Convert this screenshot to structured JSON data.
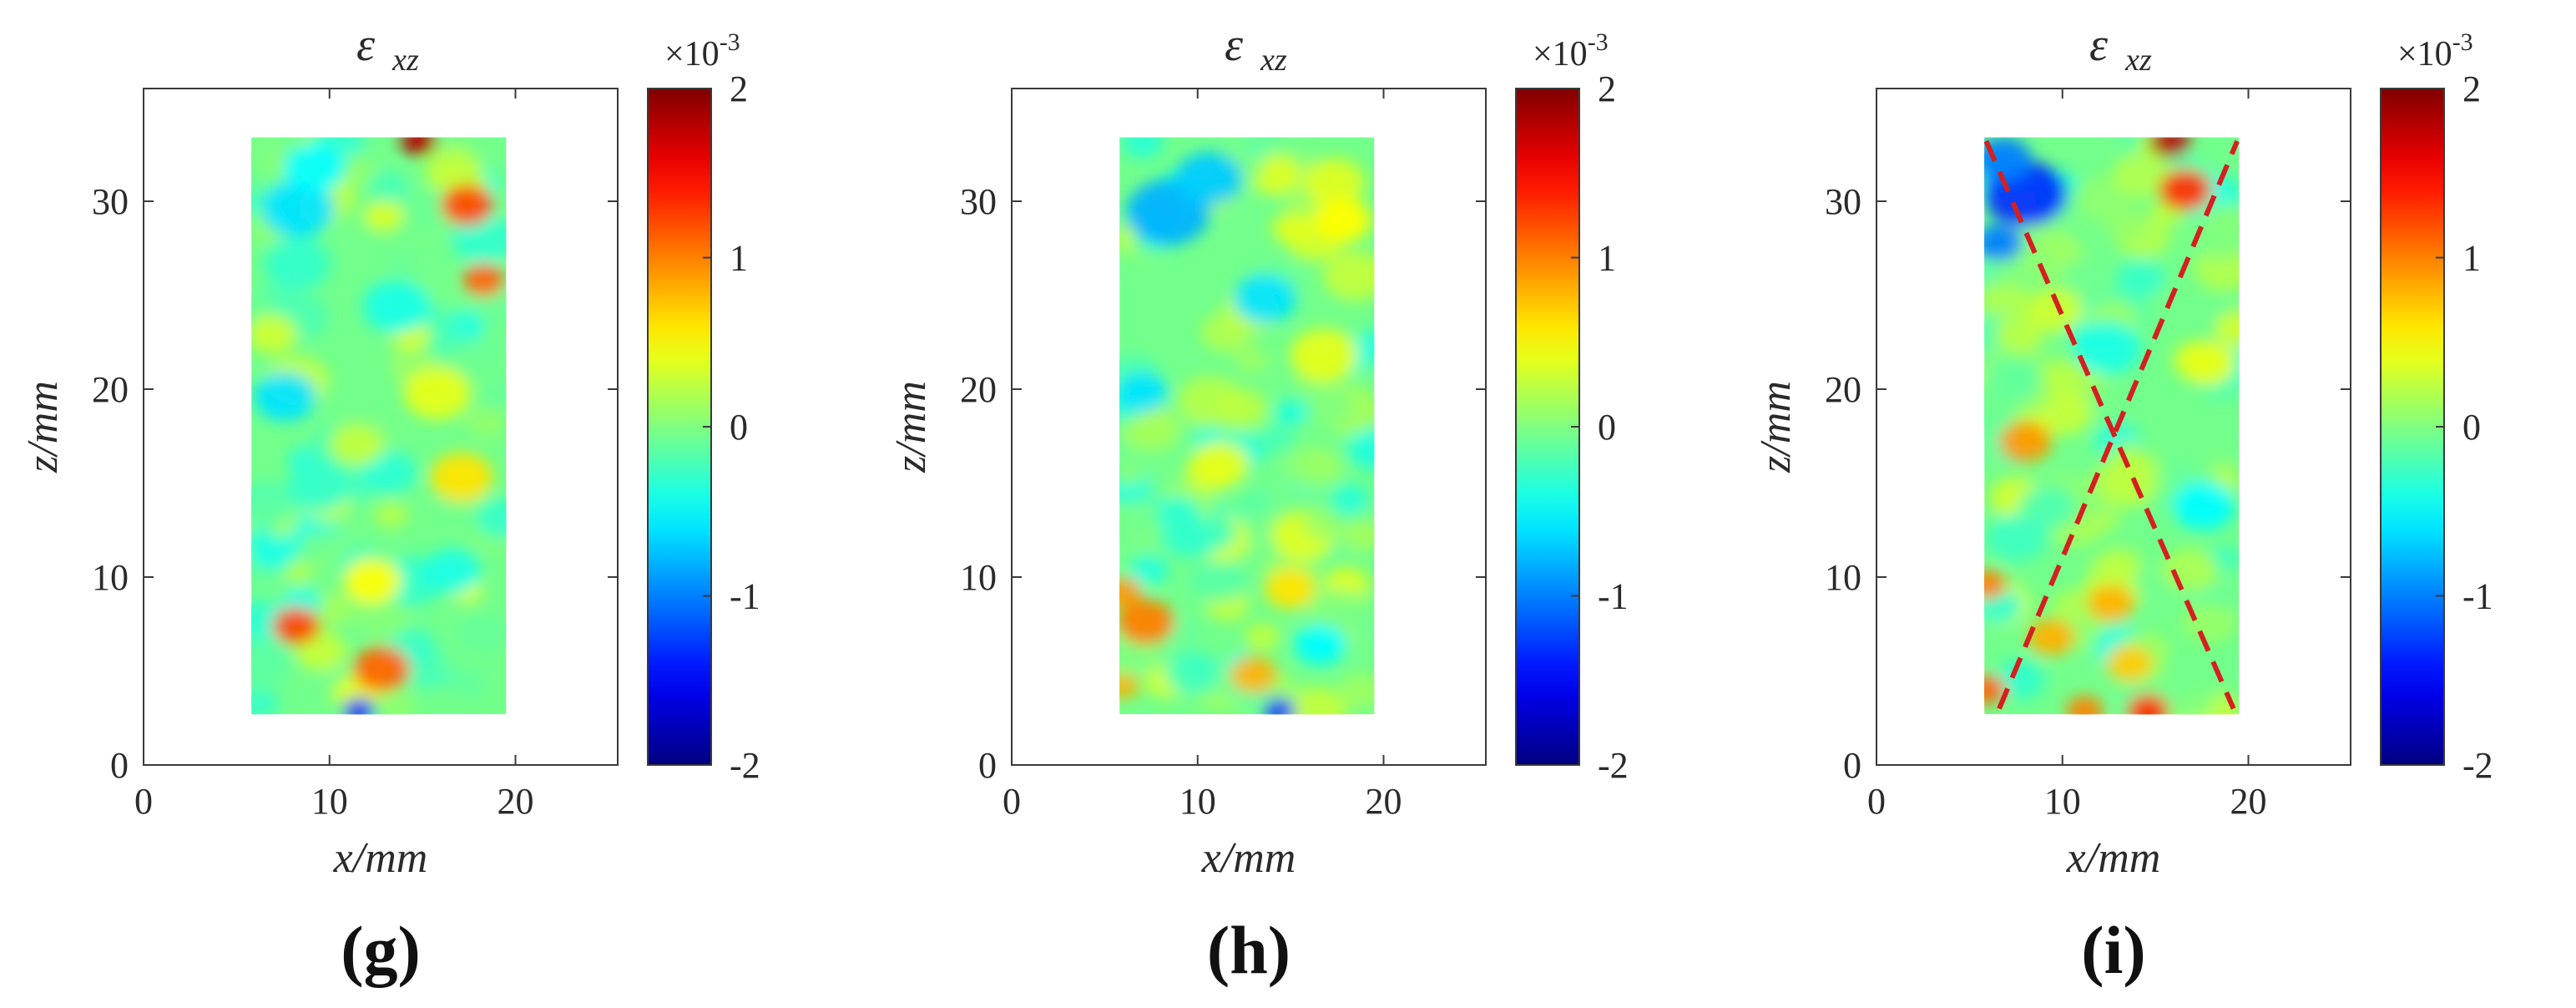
{
  "chart_data": [
    {
      "type": "heatmap",
      "panel_label": "(g)",
      "title_main": "ε",
      "title_sub": "xz",
      "xlabel": "x/mm",
      "ylabel": "z/mm",
      "xlim": [
        0,
        25.5
      ],
      "ylim": [
        0,
        36
      ],
      "xticks": [
        "0",
        "10",
        "20"
      ],
      "yticks": [
        "0",
        "10",
        "20",
        "30"
      ],
      "data_region": {
        "x": [
          5.8,
          19.5
        ],
        "z": [
          2.7,
          33.4
        ]
      },
      "colorbar": {
        "ticks": [
          "2",
          "1",
          "0",
          "-1",
          "-2"
        ],
        "range": [
          -2,
          2
        ],
        "exponent": "×10-3",
        "colormap": "jet"
      },
      "hotspots": [
        {
          "x": 8.2,
          "z": 7.4,
          "v": 1.2,
          "r": 0.9
        },
        {
          "x": 12.8,
          "z": 5.1,
          "v": 1.1,
          "r": 1.1
        },
        {
          "x": 17.4,
          "z": 29.8,
          "v": 1.2,
          "r": 1.0
        },
        {
          "x": 18.3,
          "z": 25.8,
          "v": 1.1,
          "r": 0.8
        },
        {
          "x": 14.8,
          "z": 33.2,
          "v": 1.8,
          "r": 0.7
        },
        {
          "x": 17.1,
          "z": 15.3,
          "v": 0.6,
          "r": 1.2
        },
        {
          "x": 12.3,
          "z": 9.8,
          "v": 0.5,
          "r": 1.1
        },
        {
          "x": 8.3,
          "z": 29.6,
          "v": -0.6,
          "r": 1.4
        },
        {
          "x": 9.2,
          "z": 31.8,
          "v": -0.5,
          "r": 1.2
        },
        {
          "x": 7.6,
          "z": 19.6,
          "v": -0.6,
          "r": 1.2
        },
        {
          "x": 13.6,
          "z": 24.4,
          "v": -0.4,
          "r": 1.3
        },
        {
          "x": 16.6,
          "z": 10.3,
          "v": -0.4,
          "r": 1.1
        },
        {
          "x": 11.6,
          "z": 2.9,
          "v": -1.4,
          "r": 0.6
        },
        {
          "x": 15.8,
          "z": 19.8,
          "v": 0.4,
          "r": 1.3
        },
        {
          "x": 9.4,
          "z": 14.8,
          "v": -0.3,
          "r": 1.2
        }
      ],
      "dashed_lines": []
    },
    {
      "type": "heatmap",
      "panel_label": "(h)",
      "title_main": "ε",
      "title_sub": "xz",
      "xlabel": "x/mm",
      "ylabel": "z/mm",
      "xlim": [
        0,
        25.5
      ],
      "ylim": [
        0,
        36
      ],
      "xticks": [
        "0",
        "10",
        "20"
      ],
      "yticks": [
        "0",
        "10",
        "20",
        "30"
      ],
      "data_region": {
        "x": [
          5.8,
          19.5
        ],
        "z": [
          2.7,
          33.4
        ]
      },
      "colorbar": {
        "ticks": [
          "2",
          "1",
          "0",
          "-1",
          "-2"
        ],
        "range": [
          -2,
          2
        ],
        "exponent": "×10-3",
        "colormap": "jet"
      },
      "hotspots": [
        {
          "x": 8.4,
          "z": 29.4,
          "v": -0.8,
          "r": 1.6
        },
        {
          "x": 10.6,
          "z": 31.2,
          "v": -0.7,
          "r": 1.3
        },
        {
          "x": 7.2,
          "z": 7.6,
          "v": 1.0,
          "r": 1.1
        },
        {
          "x": 6.0,
          "z": 9.2,
          "v": 0.9,
          "r": 0.7
        },
        {
          "x": 6.0,
          "z": 4.2,
          "v": 0.8,
          "r": 0.6
        },
        {
          "x": 13.0,
          "z": 4.8,
          "v": 0.8,
          "r": 0.9
        },
        {
          "x": 15.0,
          "z": 9.4,
          "v": 0.6,
          "r": 1.0
        },
        {
          "x": 13.6,
          "z": 24.8,
          "v": -0.6,
          "r": 1.2
        },
        {
          "x": 7.0,
          "z": 19.8,
          "v": -0.6,
          "r": 1.0
        },
        {
          "x": 16.8,
          "z": 21.8,
          "v": 0.4,
          "r": 1.3
        },
        {
          "x": 11.2,
          "z": 16.0,
          "v": 0.4,
          "r": 1.1
        },
        {
          "x": 16.6,
          "z": 6.4,
          "v": -0.5,
          "r": 1.0
        },
        {
          "x": 14.4,
          "z": 2.9,
          "v": -1.3,
          "r": 0.6
        },
        {
          "x": 17.8,
          "z": 29.0,
          "v": 0.5,
          "r": 1.1
        },
        {
          "x": 9.4,
          "z": 12.2,
          "v": -0.3,
          "r": 1.0
        }
      ],
      "dashed_lines": []
    },
    {
      "type": "heatmap",
      "panel_label": "(i)",
      "title_main": "ε",
      "title_sub": "xz",
      "xlabel": "x/mm",
      "ylabel": "z/mm",
      "xlim": [
        0,
        25.5
      ],
      "ylim": [
        0,
        36
      ],
      "xticks": [
        "0",
        "10",
        "20"
      ],
      "yticks": [
        "0",
        "10",
        "20",
        "30"
      ],
      "data_region": {
        "x": [
          5.8,
          19.5
        ],
        "z": [
          2.7,
          33.4
        ]
      },
      "colorbar": {
        "ticks": [
          "2",
          "1",
          "0",
          "-1",
          "-2"
        ],
        "range": [
          -2,
          2
        ],
        "exponent": "×10-3",
        "colormap": "jet"
      },
      "hotspots": [
        {
          "x": 8.0,
          "z": 30.4,
          "v": -1.3,
          "r": 1.6
        },
        {
          "x": 6.8,
          "z": 32.2,
          "v": -1.0,
          "r": 1.1
        },
        {
          "x": 6.6,
          "z": 27.8,
          "v": -1.0,
          "r": 0.9
        },
        {
          "x": 16.6,
          "z": 30.6,
          "v": 1.3,
          "r": 1.0
        },
        {
          "x": 15.8,
          "z": 33.2,
          "v": 1.8,
          "r": 0.8
        },
        {
          "x": 8.0,
          "z": 17.2,
          "v": 0.9,
          "r": 1.0
        },
        {
          "x": 12.6,
          "z": 8.6,
          "v": 0.8,
          "r": 0.9
        },
        {
          "x": 9.4,
          "z": 6.8,
          "v": 0.8,
          "r": 0.9
        },
        {
          "x": 13.6,
          "z": 5.4,
          "v": 0.7,
          "r": 0.9
        },
        {
          "x": 6.0,
          "z": 9.6,
          "v": 1.0,
          "r": 0.7
        },
        {
          "x": 6.0,
          "z": 4.0,
          "v": 1.1,
          "r": 0.7
        },
        {
          "x": 14.6,
          "z": 2.9,
          "v": 1.3,
          "r": 0.8
        },
        {
          "x": 11.2,
          "z": 2.9,
          "v": 1.0,
          "r": 0.7
        },
        {
          "x": 17.6,
          "z": 13.8,
          "v": -0.5,
          "r": 1.2
        },
        {
          "x": 12.4,
          "z": 22.2,
          "v": -0.4,
          "r": 1.3
        },
        {
          "x": 17.8,
          "z": 21.4,
          "v": 0.4,
          "r": 1.1
        },
        {
          "x": 9.6,
          "z": 24.2,
          "v": 0.3,
          "r": 1.1
        }
      ],
      "dashed_lines": [
        {
          "x1": 5.9,
          "z1": 33.2,
          "x2": 19.2,
          "z2": 3.0,
          "color": "#d42020"
        },
        {
          "x1": 6.6,
          "z1": 3.0,
          "x2": 19.4,
          "z2": 33.2,
          "color": "#d42020"
        }
      ]
    }
  ],
  "colors": {
    "axis": "#3a3a3a",
    "grid_bg": "#ffffff",
    "dashed": "#d42020"
  }
}
